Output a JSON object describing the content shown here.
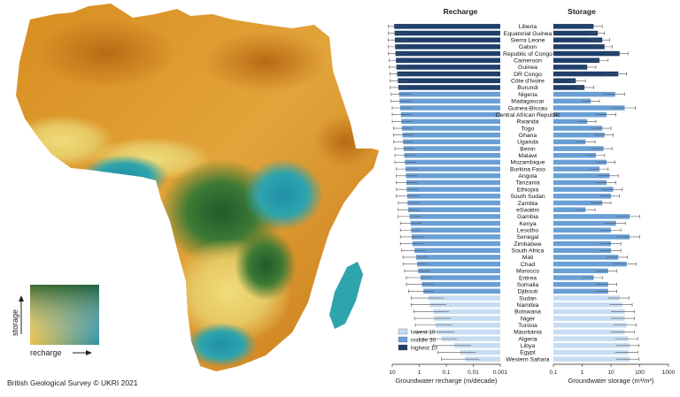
{
  "credit": "British Geological Survey © UKRI 2021",
  "map_legend": {
    "y_label": "storage",
    "x_label": "recharge"
  },
  "colors": {
    "lowest10": "#c6dcf2",
    "middle30": "#6a9fd6",
    "highest10": "#1f3f6b",
    "error": "#555555",
    "map_orange": "#d6901f",
    "map_green": "#2b6d32",
    "map_teal": "#2c9aa8",
    "map_yellow": "#e9d36a"
  },
  "chart_data": [
    {
      "type": "bar",
      "title": "Recharge",
      "xlabel": "Groundwater recharge (m/decade)",
      "xscale": "log",
      "xlim": [
        10,
        0.001
      ],
      "ticks": [
        "10",
        "1",
        "0.1",
        "0.01",
        "0.001"
      ],
      "legend": {
        "placement": "bottom-left",
        "entries": [
          "lowest 10",
          "middle 30",
          "highest 10"
        ]
      },
      "categories": [
        "Liberia",
        "Equatorial Guinea",
        "Sierra Leone",
        "Gabon",
        "Republic of Congo",
        "Cameroon",
        "Guinea",
        "DR Congo",
        "Côte d'Ivoire",
        "Burundi",
        "Nigeria",
        "Madagascar",
        "Guinea-Bissau",
        "Central African Republic",
        "Rwanda",
        "Togo",
        "Ghana",
        "Uganda",
        "Benin",
        "Malawi",
        "Mozambique",
        "Burkina Faso",
        "Angola",
        "Tanzania",
        "Ethiopia",
        "South Sudan",
        "Zambia",
        "eSwatini",
        "Gambia",
        "Kenya",
        "Lesotho",
        "Senegal",
        "Zimbabwe",
        "South Africa",
        "Mali",
        "Chad",
        "Morocco",
        "Eritrea",
        "Somalia",
        "Djibouti",
        "Sudan",
        "Namibia",
        "Botswana",
        "Niger",
        "Tunisia",
        "Mauritania",
        "Algeria",
        "Libya",
        "Egypt",
        "Western Sahara"
      ],
      "groups": [
        "highest10",
        "highest10",
        "highest10",
        "highest10",
        "highest10",
        "highest10",
        "highest10",
        "highest10",
        "highest10",
        "highest10",
        "middle30",
        "middle30",
        "middle30",
        "middle30",
        "middle30",
        "middle30",
        "middle30",
        "middle30",
        "middle30",
        "middle30",
        "middle30",
        "middle30",
        "middle30",
        "middle30",
        "middle30",
        "middle30",
        "middle30",
        "middle30",
        "middle30",
        "middle30",
        "middle30",
        "middle30",
        "middle30",
        "middle30",
        "middle30",
        "middle30",
        "middle30",
        "middle30",
        "middle30",
        "middle30",
        "lowest10",
        "lowest10",
        "lowest10",
        "lowest10",
        "lowest10",
        "lowest10",
        "lowest10",
        "lowest10",
        "lowest10",
        "lowest10"
      ],
      "values": [
        8.5,
        8.2,
        8.0,
        7.8,
        7.6,
        7.3,
        7.0,
        6.6,
        6.2,
        5.9,
        5.6,
        5.4,
        5.1,
        4.8,
        4.6,
        4.4,
        4.2,
        4.0,
        3.8,
        3.6,
        3.4,
        3.2,
        3.1,
        3.0,
        2.9,
        2.8,
        2.7,
        2.6,
        2.3,
        2.1,
        2.0,
        1.9,
        1.8,
        1.5,
        1.3,
        1.2,
        1.1,
        0.9,
        0.8,
        0.7,
        0.45,
        0.4,
        0.3,
        0.28,
        0.25,
        0.22,
        0.15,
        0.05,
        0.03,
        0.02
      ],
      "err_low": [
        14,
        14,
        14,
        14,
        14,
        13,
        13,
        12,
        12,
        12,
        11,
        11,
        10,
        10,
        10,
        9,
        9,
        9,
        8,
        8,
        8,
        7,
        7,
        7,
        7,
        7,
        6,
        6,
        6,
        5,
        5,
        5,
        5,
        4.5,
        4,
        4,
        3.5,
        3,
        3,
        2.5,
        2,
        2,
        1.6,
        1.5,
        1.4,
        1.2,
        1,
        0.3,
        0.2,
        0.15
      ],
      "err_high": [
        3,
        3,
        3,
        3,
        3,
        3,
        3,
        3,
        2.5,
        2.5,
        2,
        2,
        2,
        2,
        2,
        1.8,
        1.6,
        1.6,
        1.5,
        1.4,
        1.3,
        1.2,
        1.2,
        1.1,
        1.1,
        1,
        1,
        1,
        0.9,
        0.8,
        0.8,
        0.7,
        0.7,
        0.6,
        0.5,
        0.5,
        0.4,
        0.35,
        0.3,
        0.28,
        0.12,
        0.1,
        0.08,
        0.07,
        0.06,
        0.05,
        0.04,
        0.012,
        0.008,
        0.006
      ]
    },
    {
      "type": "bar",
      "title": "Storage",
      "xlabel": "Groundwater storage (m³/m²)",
      "xscale": "log",
      "xlim": [
        0.1,
        1000
      ],
      "ticks": [
        "0.1",
        "1",
        "10",
        "100",
        "1000"
      ],
      "values": [
        2.5,
        3.5,
        5,
        6,
        20,
        4,
        1.5,
        18,
        0.6,
        1.2,
        14,
        2,
        30,
        7,
        1.5,
        5,
        6,
        1.3,
        5.5,
        3,
        7,
        4,
        9,
        7,
        12,
        10,
        5,
        1.3,
        45,
        15,
        10,
        45,
        10,
        10,
        18,
        35,
        8,
        2.5,
        8,
        8,
        20,
        25,
        30,
        30,
        35,
        30,
        40,
        45,
        40,
        45
      ],
      "err_low": [
        1.2,
        1.5,
        2,
        2.5,
        6,
        1.8,
        0.8,
        6,
        0.3,
        0.6,
        5,
        1,
        10,
        3,
        0.7,
        2,
        2.5,
        0.6,
        2.2,
        1.3,
        3,
        1.8,
        3.5,
        3,
        4.5,
        4,
        2,
        0.6,
        15,
        6,
        4,
        15,
        4,
        4,
        7,
        12,
        3,
        1,
        3,
        3,
        8,
        9,
        10,
        10,
        12,
        10,
        14,
        15,
        14,
        15
      ],
      "err_high": [
        5,
        6,
        9,
        11,
        40,
        8,
        3,
        35,
        1.3,
        2.5,
        30,
        4,
        70,
        15,
        3,
        10,
        12,
        2.8,
        11,
        6,
        14,
        8,
        18,
        15,
        25,
        20,
        10,
        2.8,
        100,
        32,
        22,
        100,
        22,
        22,
        38,
        75,
        16,
        5,
        16,
        16,
        42,
        55,
        65,
        65,
        75,
        65,
        85,
        95,
        85,
        95
      ]
    }
  ]
}
